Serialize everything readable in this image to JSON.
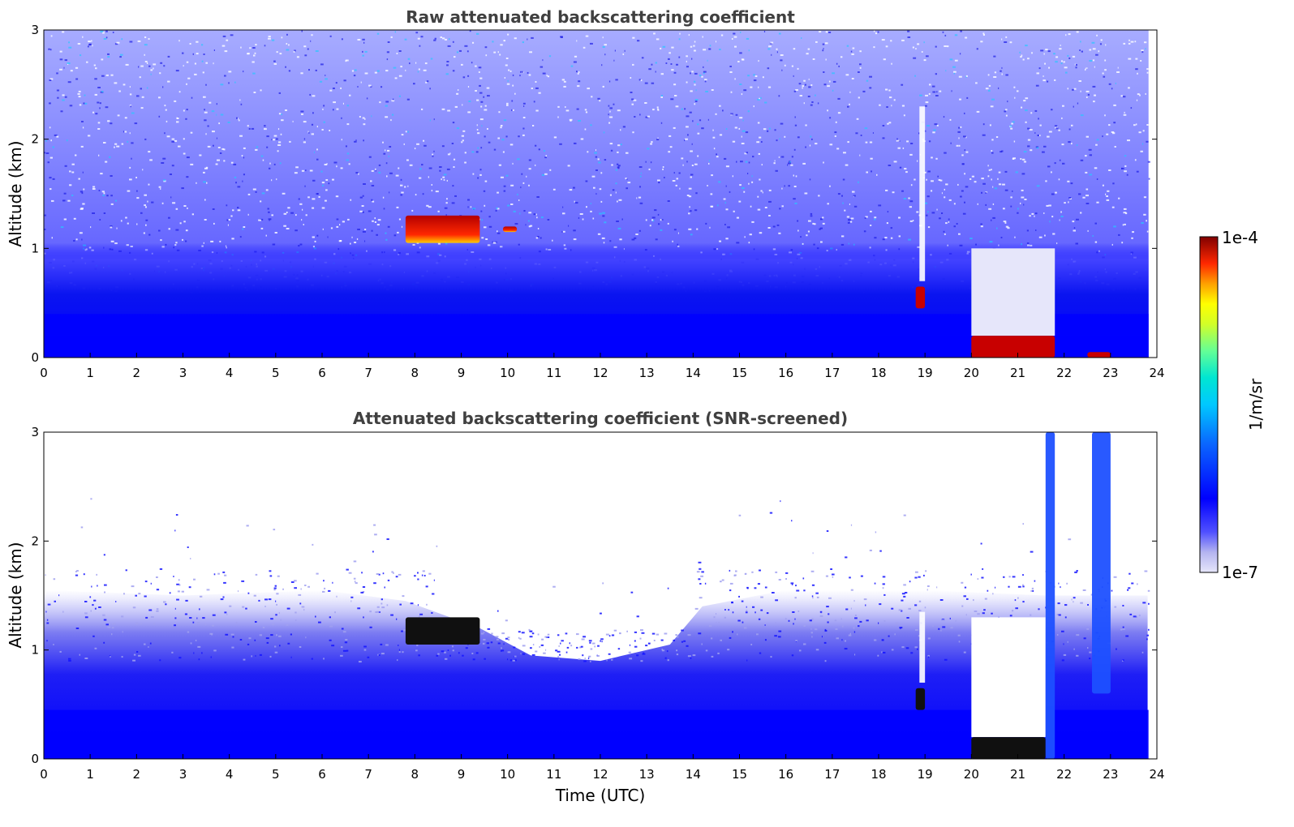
{
  "chart_data": [
    {
      "type": "heatmap",
      "title": "Raw attenuated backscattering coefficient",
      "xlabel": "",
      "ylabel": "Altitude (km)",
      "xlim": [
        0,
        24
      ],
      "ylim": [
        0,
        3
      ],
      "xticks": [
        "0",
        "1",
        "2",
        "3",
        "4",
        "5",
        "6",
        "7",
        "8",
        "9",
        "10",
        "11",
        "12",
        "13",
        "14",
        "15",
        "16",
        "17",
        "18",
        "19",
        "20",
        "21",
        "22",
        "23",
        "24"
      ],
      "yticks": [
        "0",
        "1",
        "2",
        "3"
      ],
      "features": [
        {
          "name": "boundary layer aerosol",
          "t": [
            0,
            23.8
          ],
          "alt": [
            0,
            1.0
          ]
        },
        {
          "name": "cloud",
          "t": [
            7.8,
            9.4
          ],
          "alt": [
            1.05,
            1.3
          ]
        },
        {
          "name": "cloud fragment",
          "t": [
            9.9,
            10.2
          ],
          "alt": [
            1.15,
            1.2
          ]
        },
        {
          "name": "low cloud",
          "t": [
            18.8,
            19.0
          ],
          "alt": [
            0.45,
            0.65
          ]
        },
        {
          "name": "precipitation / fog",
          "t": [
            20.0,
            21.8
          ],
          "alt": [
            0,
            0.2
          ]
        },
        {
          "name": "low cloud",
          "t": [
            22.5,
            23.0
          ],
          "alt": [
            0,
            0.05
          ]
        }
      ]
    },
    {
      "type": "heatmap",
      "title": "Attenuated backscattering coefficient (SNR-screened)",
      "xlabel": "Time (UTC)",
      "ylabel": "Altitude (km)",
      "xlim": [
        0,
        24
      ],
      "ylim": [
        0,
        3
      ],
      "xticks": [
        "0",
        "1",
        "2",
        "3",
        "4",
        "5",
        "6",
        "7",
        "8",
        "9",
        "10",
        "11",
        "12",
        "13",
        "14",
        "15",
        "16",
        "17",
        "18",
        "19",
        "20",
        "21",
        "22",
        "23",
        "24"
      ],
      "yticks": [
        "0",
        "1",
        "2",
        "3"
      ],
      "features": [
        {
          "name": "boundary layer aerosol",
          "t": [
            0,
            23.8
          ],
          "alt": [
            0,
            1.5
          ]
        },
        {
          "name": "cloud",
          "t": [
            7.8,
            9.4
          ],
          "alt": [
            1.05,
            1.3
          ]
        },
        {
          "name": "low cloud",
          "t": [
            18.8,
            19.0
          ],
          "alt": [
            0.45,
            0.65
          ]
        },
        {
          "name": "precipitation / fog",
          "t": [
            20.0,
            21.6
          ],
          "alt": [
            0,
            0.2
          ]
        },
        {
          "name": "vertical plume",
          "t": [
            21.6,
            21.8
          ],
          "alt": [
            0,
            3.0
          ]
        },
        {
          "name": "vertical plume",
          "t": [
            22.6,
            23.0
          ],
          "alt": [
            0.6,
            3.0
          ]
        }
      ]
    }
  ],
  "colorbar": {
    "label": "1/m/sr",
    "max_label": "1e-4",
    "min_label": "1e-7",
    "scale": "log",
    "range": [
      1e-07,
      0.0001
    ],
    "colormap": [
      "#e6e6fa",
      "#c8c8f5",
      "#0000ff",
      "#0a5aff",
      "#00b4ff",
      "#00e6e6",
      "#64ff96",
      "#c8ff32",
      "#ffff00",
      "#ffa000",
      "#ff3200",
      "#c80000",
      "#800000"
    ]
  }
}
